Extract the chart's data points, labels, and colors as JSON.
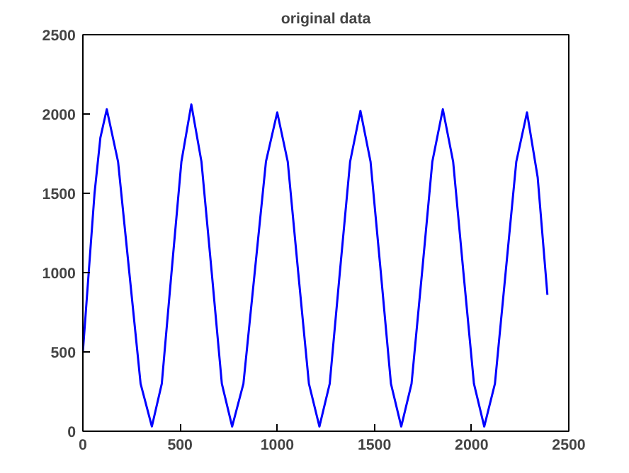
{
  "chart_data": {
    "type": "line",
    "title": "original data",
    "x": [
      0,
      30,
      60,
      90,
      123,
      181,
      239,
      297,
      355,
      406,
      456,
      507,
      558,
      610,
      663,
      715,
      768,
      826,
      884,
      942,
      1000,
      1054,
      1108,
      1163,
      1217,
      1270,
      1322,
      1375,
      1428,
      1480,
      1533,
      1585,
      1638,
      1691,
      1745,
      1798,
      1852,
      1905,
      1958,
      2012,
      2065,
      2120,
      2175,
      2230,
      2285,
      2340,
      2390
    ],
    "series": [
      {
        "color": "#0000ff",
        "values": [
          500,
          1000,
          1500,
          1850,
          2030,
          1700,
          1000,
          300,
          30,
          300,
          1000,
          1700,
          2060,
          1700,
          1000,
          300,
          30,
          300,
          1000,
          1700,
          2010,
          1700,
          1000,
          300,
          30,
          300,
          1000,
          1700,
          2020,
          1700,
          1000,
          300,
          30,
          300,
          1000,
          1700,
          2030,
          1700,
          1000,
          300,
          30,
          300,
          1000,
          1700,
          2010,
          1600,
          860
        ]
      }
    ],
    "xlim": [
      0,
      2500
    ],
    "xticks": [
      0,
      500,
      1000,
      1500,
      2000,
      2500
    ],
    "ylim": [
      0,
      2500
    ],
    "yticks": [
      0,
      500,
      1000,
      1500,
      2000,
      2500
    ],
    "grid": false,
    "marker": "none",
    "line_style": "solid"
  }
}
